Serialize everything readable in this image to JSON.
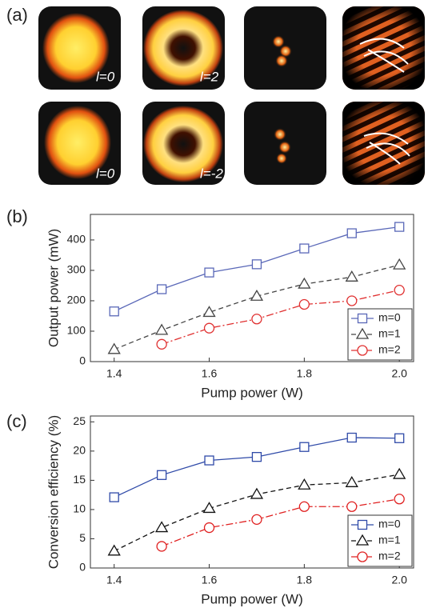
{
  "panel_a": {
    "label": "(a)",
    "captions": [
      "l=0",
      "l=2",
      "l=0",
      "l=-2"
    ]
  },
  "chart_data": [
    {
      "type": "line",
      "panel_label": "(b)",
      "x_label": "Pump power (W)",
      "y_label": "Output power (mW)",
      "x": [
        1.4,
        1.5,
        1.6,
        1.7,
        1.8,
        1.9,
        2.0
      ],
      "xlim": [
        1.35,
        2.03
      ],
      "xticks": [
        1.4,
        1.6,
        1.8,
        {
          "value": 2,
          "label": "2.0"
        }
      ],
      "ylim": [
        0,
        484
      ],
      "yticks": [
        0,
        100,
        200,
        300,
        400
      ],
      "grid": false,
      "legend": "lower right",
      "series": [
        {
          "name": "m=0",
          "color": "#5a68b8",
          "marker": "square",
          "line_style": "solid",
          "values": [
            165,
            238,
            293,
            320,
            372,
            422,
            443
          ]
        },
        {
          "name": "m=1",
          "color": "#444444",
          "marker": "triangle",
          "line_style": "dashed",
          "values": [
            40,
            103,
            162,
            215,
            255,
            278,
            318
          ]
        },
        {
          "name": "m=2",
          "color": "#e03030",
          "marker": "circle",
          "line_style": "dashdot",
          "values": [
            null,
            57,
            110,
            140,
            188,
            200,
            235
          ]
        }
      ]
    },
    {
      "type": "line",
      "panel_label": "(c)",
      "x_label": "Pump power (W)",
      "y_label": "Conversion efficiency (%)",
      "x": [
        1.4,
        1.5,
        1.6,
        1.7,
        1.8,
        1.9,
        2.0
      ],
      "xlim": [
        1.35,
        2.03
      ],
      "xticks": [
        1.4,
        1.6,
        1.8,
        {
          "value": 2,
          "label": "2.0"
        }
      ],
      "ylim": [
        0,
        26
      ],
      "yticks": [
        0,
        5,
        10,
        15,
        20,
        25
      ],
      "grid": false,
      "legend": "lower right",
      "series": [
        {
          "name": "m=0",
          "color": "#2f4aa8",
          "marker": "square",
          "line_style": "solid",
          "values": [
            12.1,
            15.9,
            18.4,
            19.0,
            20.7,
            22.3,
            22.2
          ]
        },
        {
          "name": "m=1",
          "color": "#111111",
          "marker": "triangle",
          "line_style": "dashed",
          "values": [
            2.9,
            6.9,
            10.2,
            12.6,
            14.2,
            14.6,
            16.0
          ]
        },
        {
          "name": "m=2",
          "color": "#e02020",
          "marker": "circle",
          "line_style": "dashdot",
          "values": [
            null,
            3.7,
            6.9,
            8.3,
            10.5,
            10.5,
            11.8
          ]
        }
      ]
    }
  ]
}
